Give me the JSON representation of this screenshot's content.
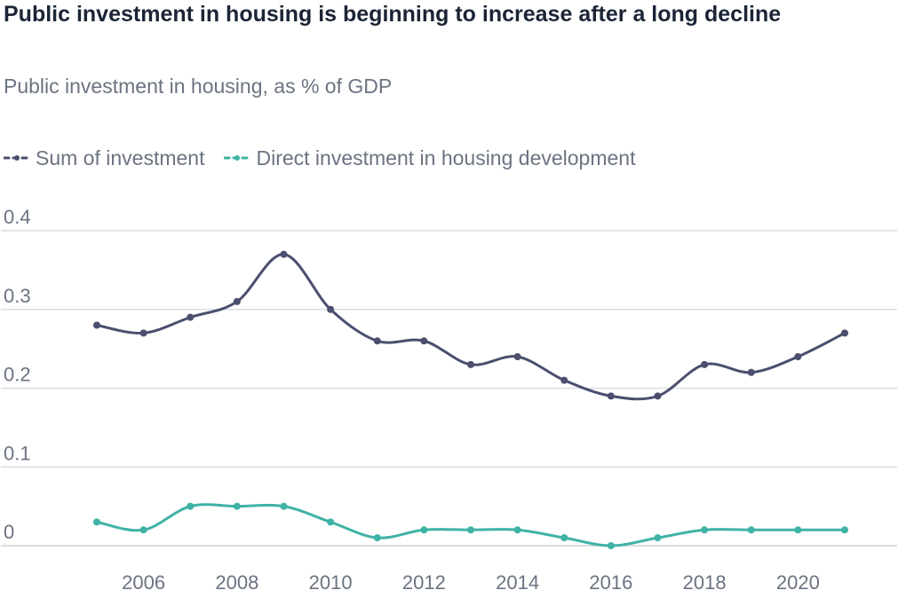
{
  "chart_data": {
    "type": "line",
    "title": "Public investment in housing is beginning to increase after a long decline",
    "subtitle": "Public investment in housing, as % of GDP",
    "xlabel": "",
    "ylabel": "",
    "ylim": [
      0,
      0.4
    ],
    "xlim": [
      2004,
      2022
    ],
    "grid": true,
    "legend_position": "top-left",
    "y_ticks": [
      "0",
      "0.1",
      "0.2",
      "0.3",
      "0.4"
    ],
    "x_ticks": [
      "2006",
      "2008",
      "2010",
      "2012",
      "2014",
      "2016",
      "2018",
      "2020"
    ],
    "x": [
      2005,
      2006,
      2007,
      2008,
      2009,
      2010,
      2011,
      2012,
      2013,
      2014,
      2015,
      2016,
      2017,
      2018,
      2019,
      2020,
      2021
    ],
    "series": [
      {
        "name": "Sum of investment",
        "color": "#4a4f6e",
        "values": [
          0.28,
          0.27,
          0.29,
          0.31,
          0.37,
          0.3,
          0.26,
          0.26,
          0.23,
          0.24,
          0.21,
          0.19,
          0.19,
          0.23,
          0.22,
          0.24,
          0.27
        ]
      },
      {
        "name": "Direct investment in housing development",
        "color": "#3fb3a5",
        "values": [
          0.03,
          0.02,
          0.05,
          0.05,
          0.05,
          0.03,
          0.01,
          0.02,
          0.02,
          0.02,
          0.01,
          0.0,
          0.01,
          0.02,
          0.02,
          0.02,
          0.02
        ]
      }
    ]
  }
}
